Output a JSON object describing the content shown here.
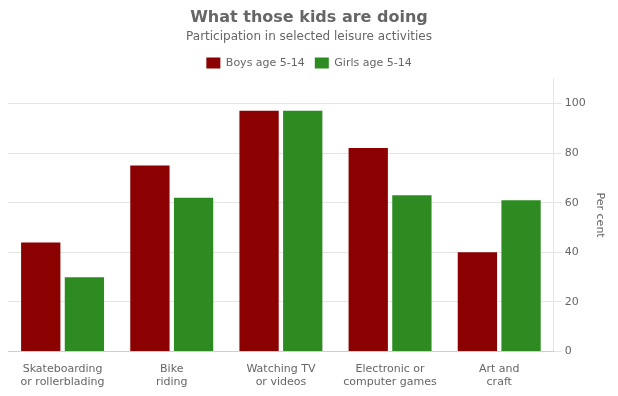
{
  "chart_data": {
    "type": "bar",
    "title": "What those kids are doing",
    "subtitle": "Participation in selected leisure activities",
    "categories": [
      "Skateboarding\nor rollerblading",
      "Bike\nriding",
      "Watching TV\nor videos",
      "Electronic or\ncomputer games",
      "Art and\ncraft"
    ],
    "series": [
      {
        "name": "Boys age 5-14",
        "color": "#8B0000",
        "values": [
          44,
          75,
          97,
          82,
          40
        ]
      },
      {
        "name": "Girls age 5-14",
        "color": "#2E8B22",
        "values": [
          30,
          62,
          97,
          63,
          61
        ]
      }
    ],
    "ylabel": "Per cent",
    "ylim": [
      0,
      110
    ],
    "yticks": [
      0,
      20,
      40,
      60,
      80,
      100
    ],
    "grid": true,
    "legend": "top"
  }
}
